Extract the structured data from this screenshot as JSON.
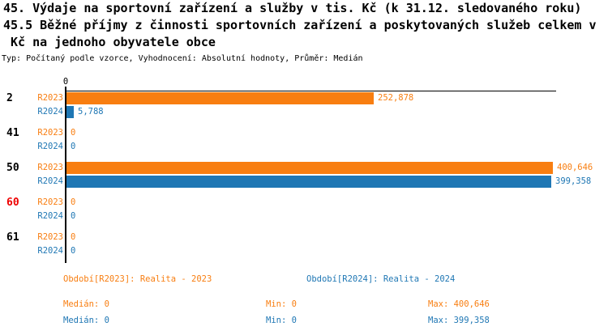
{
  "title": {
    "line1": "45. Výdaje na sportovní zařízení a služby v tis. Kč (k 31.12. sledovaného roku)",
    "line2": "45.5 Běžné příjmy z činnosti sportovních zařízení a poskytovaných služeb celkem v",
    "line3": " Kč na jednoho obyvatele obce",
    "meta": "Typ: Počítaný podle vzorce, Vyhodnocení: Absolutní hodnoty, Průměr: Medián"
  },
  "colors": {
    "r2023": "#F87E11",
    "r2024": "#1F77B4",
    "highlight": "#EE0000",
    "axis": "#000000",
    "text": "#000000"
  },
  "chart_data": {
    "type": "bar",
    "orientation": "horizontal",
    "title": "",
    "xlabel": "",
    "ylabel": "",
    "xlim": [
      0,
      400646
    ],
    "axis_zero_label": "0",
    "grid": false,
    "legend_position": "bottom",
    "series_names": [
      "R2023",
      "R2024"
    ],
    "categories": [
      "2",
      "41",
      "50",
      "60",
      "61"
    ],
    "highlighted_categories": [
      "60"
    ],
    "groups": [
      {
        "category": "2",
        "highlight": false,
        "bars": [
          {
            "series": "R2023",
            "value": 252878,
            "label": "252,878"
          },
          {
            "series": "R2024",
            "value": 5788,
            "label": "5,788"
          }
        ]
      },
      {
        "category": "41",
        "highlight": false,
        "bars": [
          {
            "series": "R2023",
            "value": 0,
            "label": "0"
          },
          {
            "series": "R2024",
            "value": 0,
            "label": "0"
          }
        ]
      },
      {
        "category": "50",
        "highlight": false,
        "bars": [
          {
            "series": "R2023",
            "value": 400646,
            "label": "400,646"
          },
          {
            "series": "R2024",
            "value": 399358,
            "label": "399,358"
          }
        ]
      },
      {
        "category": "60",
        "highlight": true,
        "bars": [
          {
            "series": "R2023",
            "value": 0,
            "label": "0"
          },
          {
            "series": "R2024",
            "value": 0,
            "label": "0"
          }
        ]
      },
      {
        "category": "61",
        "highlight": false,
        "bars": [
          {
            "series": "R2023",
            "value": 0,
            "label": "0"
          },
          {
            "series": "R2024",
            "value": 0,
            "label": "0"
          }
        ]
      }
    ]
  },
  "legend": [
    {
      "text": "Období[R2023]: Realita - 2023",
      "series": "r2023"
    },
    {
      "text": "Období[R2024]: Realita - 2024",
      "series": "r2024"
    }
  ],
  "stats": [
    {
      "series": "r2023",
      "median": "Medián: 0",
      "min": "Min: 0",
      "max": "Max: 400,646"
    },
    {
      "series": "r2024",
      "median": "Medián: 0",
      "min": "Min: 0",
      "max": "Max: 399,358"
    }
  ]
}
